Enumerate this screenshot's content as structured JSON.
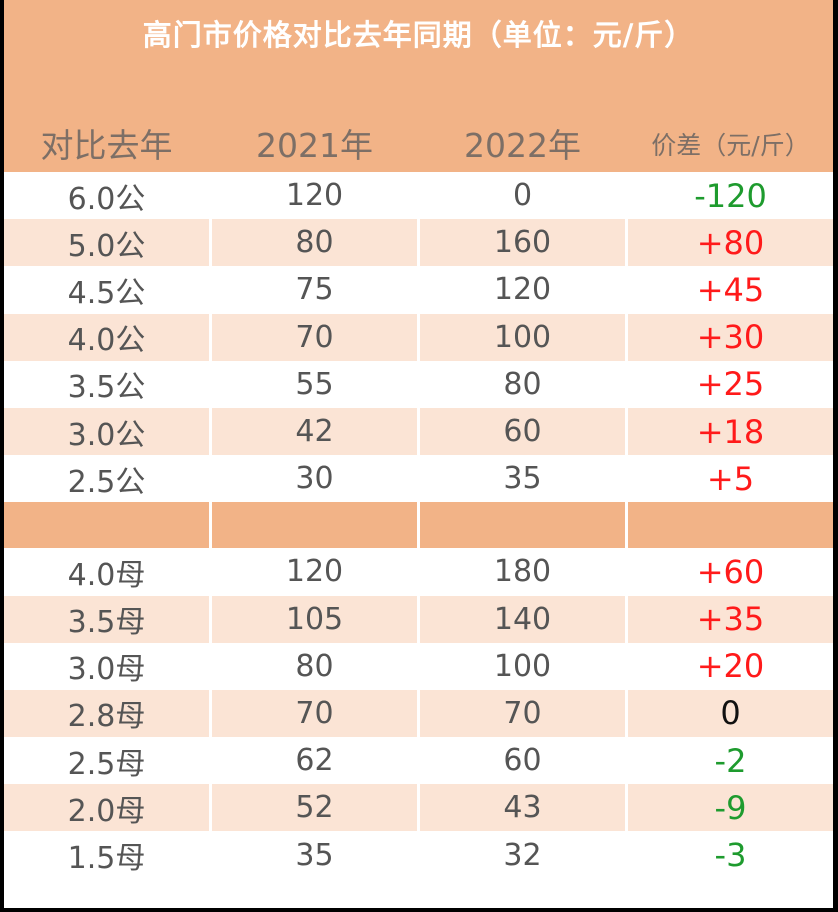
{
  "title": "高门市价格对比去年同期（单位：元/斤）",
  "headers": [
    "对比去年",
    "2021年",
    "2022年",
    "价差（元/斤）"
  ],
  "colors": {
    "header_bg": "#f2b387",
    "band_bg": "#fbe4d5",
    "positive": "#ff1a1a",
    "negative": "#1e9b2e"
  },
  "male_rows": [
    {
      "spec": "6.0公",
      "y2021": "120",
      "y2022": "0",
      "diff": "-120"
    },
    {
      "spec": "5.0公",
      "y2021": "80",
      "y2022": "160",
      "diff": "+80"
    },
    {
      "spec": "4.5公",
      "y2021": "75",
      "y2022": "120",
      "diff": "+45"
    },
    {
      "spec": "4.0公",
      "y2021": "70",
      "y2022": "100",
      "diff": "+30"
    },
    {
      "spec": "3.5公",
      "y2021": "55",
      "y2022": "80",
      "diff": "+25"
    },
    {
      "spec": "3.0公",
      "y2021": "42",
      "y2022": "60",
      "diff": "+18"
    },
    {
      "spec": "2.5公",
      "y2021": "30",
      "y2022": "35",
      "diff": "+5"
    }
  ],
  "female_rows": [
    {
      "spec": "4.0母",
      "y2021": "120",
      "y2022": "180",
      "diff": "+60"
    },
    {
      "spec": "3.5母",
      "y2021": "105",
      "y2022": "140",
      "diff": "+35"
    },
    {
      "spec": "3.0母",
      "y2021": "80",
      "y2022": "100",
      "diff": "+20"
    },
    {
      "spec": "2.8母",
      "y2021": "70",
      "y2022": "70",
      "diff": "0"
    },
    {
      "spec": "2.5母",
      "y2021": "62",
      "y2022": "60",
      "diff": "-2"
    },
    {
      "spec": "2.0母",
      "y2021": "52",
      "y2022": "43",
      "diff": "-9"
    },
    {
      "spec": "1.5母",
      "y2021": "35",
      "y2022": "32",
      "diff": "-3"
    }
  ]
}
